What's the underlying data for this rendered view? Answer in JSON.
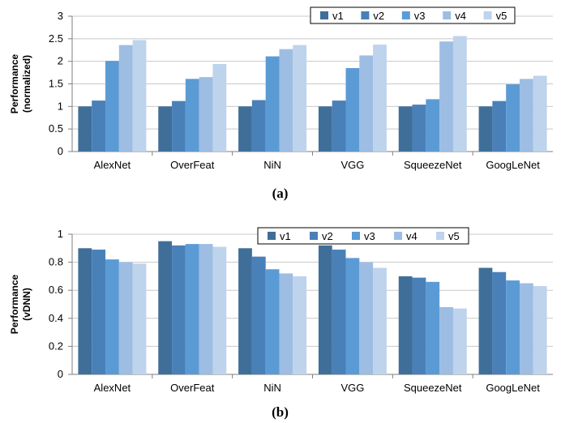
{
  "chart_data": [
    {
      "type": "bar",
      "caption": "(a)",
      "ylabel_lines": [
        "Performance",
        "(normalized)"
      ],
      "ylim": [
        0,
        3
      ],
      "yticks": [
        "0",
        "0.5",
        "1",
        "1.5",
        "2",
        "2.5",
        "3"
      ],
      "categories": [
        "AlexNet",
        "OverFeat",
        "NiN",
        "VGG",
        "SqueezeNet",
        "GoogLeNet"
      ],
      "legend_position": "top-right",
      "grid": "horizontal",
      "series": [
        {
          "name": "v1",
          "color": "#3f6f99",
          "values": [
            1.0,
            1.0,
            1.0,
            1.0,
            1.0,
            1.0
          ]
        },
        {
          "name": "v2",
          "color": "#4a80b8",
          "values": [
            1.13,
            1.12,
            1.14,
            1.13,
            1.04,
            1.12
          ]
        },
        {
          "name": "v3",
          "color": "#5b9bd5",
          "values": [
            2.01,
            1.61,
            2.11,
            1.85,
            1.16,
            1.49
          ]
        },
        {
          "name": "v4",
          "color": "#9dbde3",
          "values": [
            2.36,
            1.65,
            2.27,
            2.13,
            2.44,
            1.61
          ]
        },
        {
          "name": "v5",
          "color": "#bed3ec",
          "values": [
            2.47,
            1.94,
            2.36,
            2.37,
            2.56,
            1.68
          ]
        }
      ]
    },
    {
      "type": "bar",
      "caption": "(b)",
      "ylabel_lines": [
        "Performance",
        "(vDNN)"
      ],
      "ylim": [
        0,
        1
      ],
      "yticks": [
        "0",
        "0.2",
        "0.4",
        "0.6",
        "0.8",
        "1"
      ],
      "categories": [
        "AlexNet",
        "OverFeat",
        "NiN",
        "VGG",
        "SqueezeNet",
        "GoogLeNet"
      ],
      "legend_position": "top-right",
      "grid": "horizontal",
      "series": [
        {
          "name": "v1",
          "color": "#3f6f99",
          "values": [
            0.9,
            0.95,
            0.9,
            0.92,
            0.7,
            0.76
          ]
        },
        {
          "name": "v2",
          "color": "#4a80b8",
          "values": [
            0.89,
            0.92,
            0.84,
            0.89,
            0.69,
            0.73
          ]
        },
        {
          "name": "v3",
          "color": "#5b9bd5",
          "values": [
            0.82,
            0.93,
            0.75,
            0.83,
            0.66,
            0.67
          ]
        },
        {
          "name": "v4",
          "color": "#9dbde3",
          "values": [
            0.8,
            0.93,
            0.72,
            0.8,
            0.48,
            0.65
          ]
        },
        {
          "name": "v5",
          "color": "#bed3ec",
          "values": [
            0.79,
            0.91,
            0.7,
            0.76,
            0.47,
            0.63
          ]
        }
      ]
    }
  ]
}
